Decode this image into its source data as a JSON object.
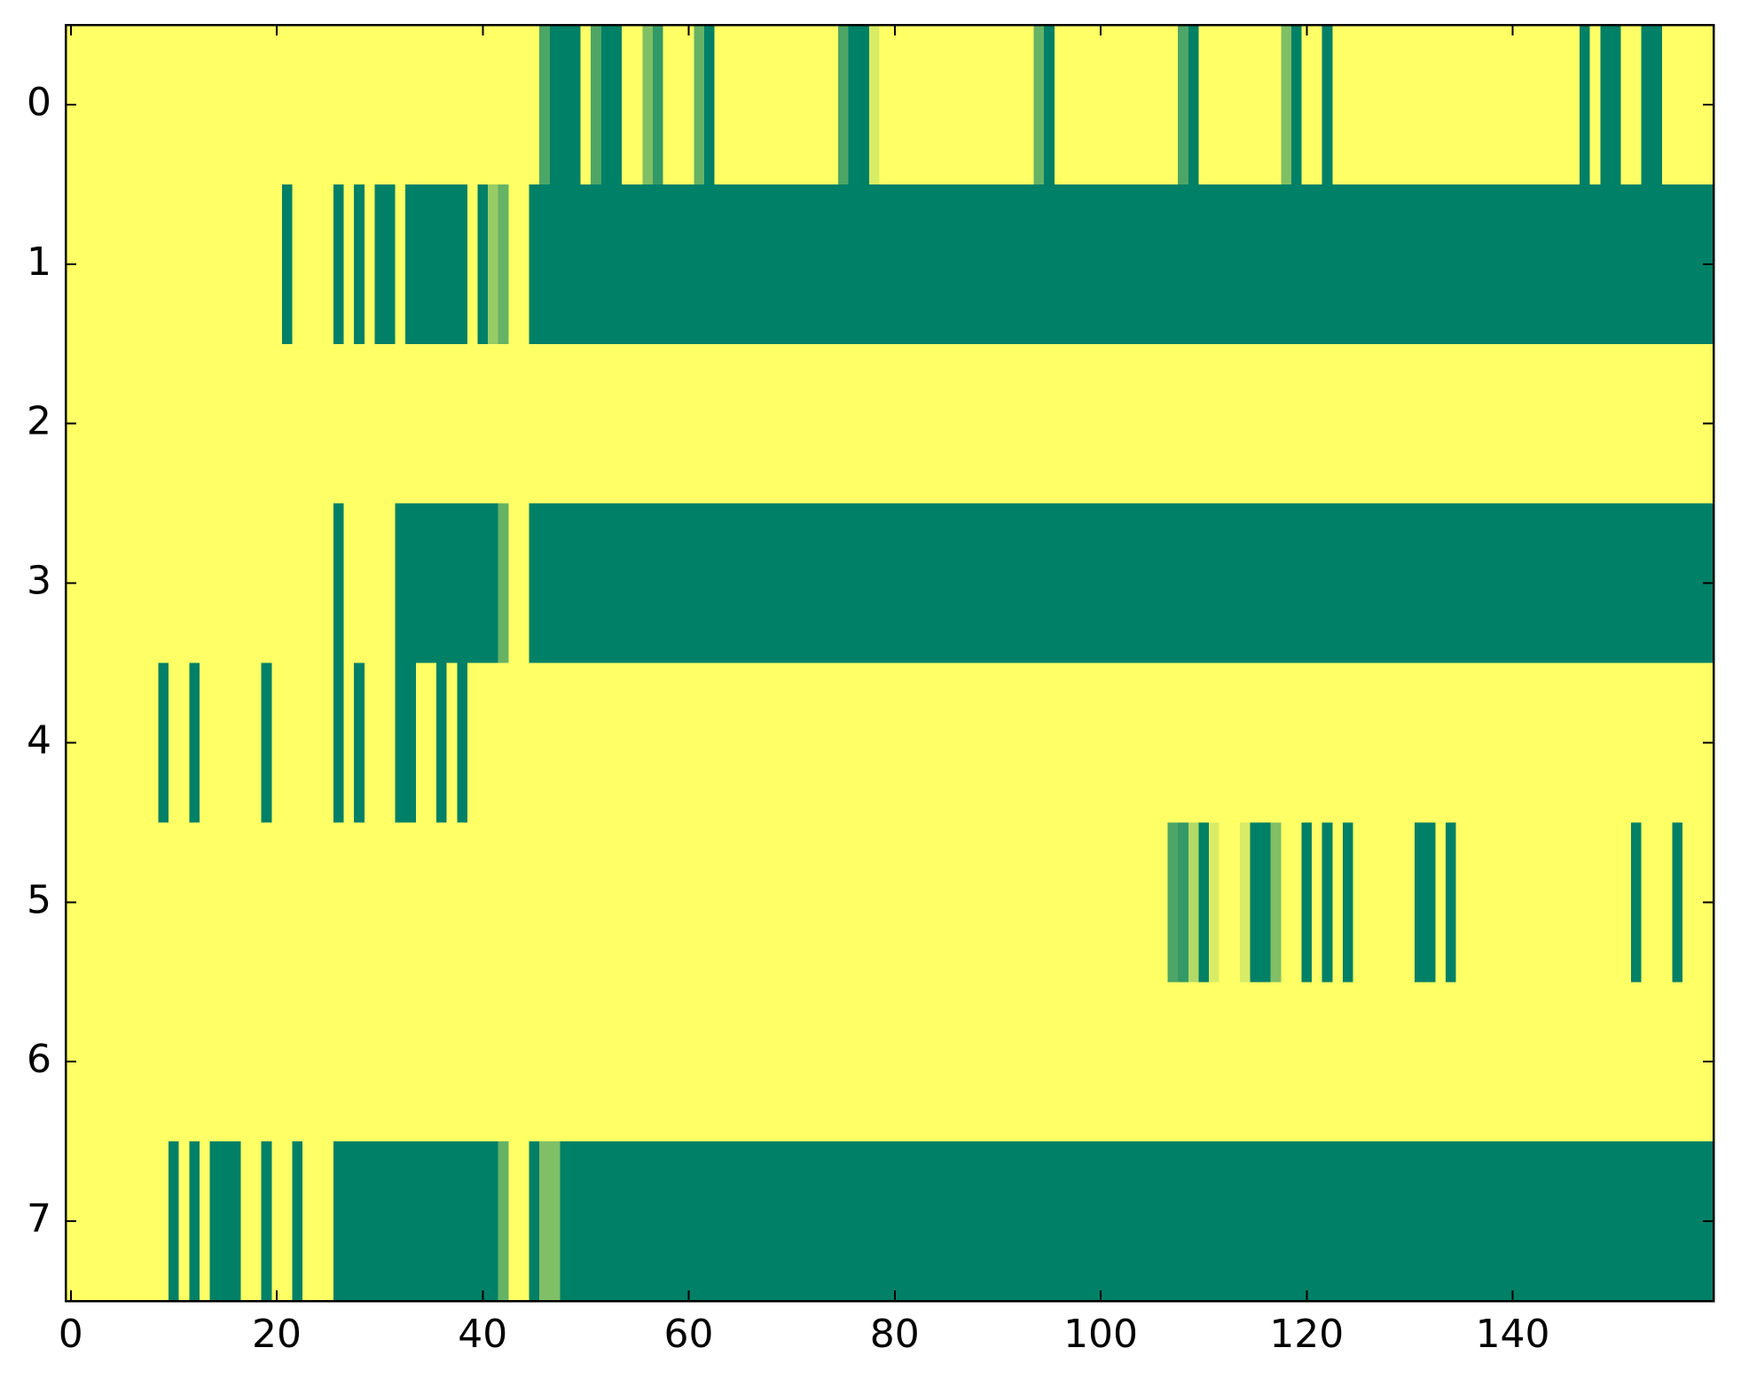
{
  "chart_data": {
    "type": "heatmap",
    "colormap": "summer_r",
    "vlim": [
      0,
      1
    ],
    "xlim": [
      -0.5,
      159.5
    ],
    "ylim": [
      7.5,
      -0.5
    ],
    "xticks": [
      0,
      20,
      40,
      60,
      80,
      100,
      120,
      140
    ],
    "yticks": [
      0,
      1,
      2,
      3,
      4,
      5,
      6,
      7
    ],
    "z": [
      [
        0,
        0,
        0,
        0,
        0,
        0,
        0,
        0,
        0,
        0,
        0,
        0,
        0,
        0,
        0,
        0,
        0,
        0,
        0,
        0,
        0,
        0,
        0,
        0,
        0,
        0,
        0,
        0,
        0,
        0,
        0,
        0,
        0,
        0,
        0,
        0,
        0,
        0,
        0,
        0,
        0,
        0,
        0,
        0,
        0,
        0,
        0.7,
        1,
        1,
        1,
        0,
        0.7,
        1,
        1,
        0,
        0,
        0.5,
        0.8,
        0,
        0,
        0,
        0.6,
        1,
        0,
        0,
        0,
        0,
        0,
        0,
        0,
        0,
        0,
        0,
        0,
        0,
        0.7,
        1,
        1,
        0.15,
        0,
        0,
        0,
        0,
        0,
        0,
        0,
        0,
        0,
        0,
        0,
        0,
        0,
        0,
        0,
        0.6,
        1,
        0,
        0,
        0,
        0,
        0,
        0,
        0,
        0,
        0,
        0,
        0,
        0,
        0.7,
        1,
        0,
        0,
        0,
        0,
        0,
        0,
        0,
        0,
        0.5,
        1,
        0,
        0,
        1,
        0,
        0,
        0,
        0,
        0,
        0,
        0,
        0,
        0,
        0,
        0,
        0,
        0,
        0,
        0,
        0,
        0,
        0,
        0,
        0,
        0,
        0,
        0,
        0,
        1,
        0,
        1,
        1,
        0,
        0,
        1,
        1,
        0,
        0,
        0,
        0,
        0
      ],
      [
        0,
        0,
        0,
        0,
        0,
        0,
        0,
        0,
        0,
        0,
        0,
        0,
        0,
        0,
        0,
        0,
        0,
        0,
        0,
        0,
        0,
        1,
        0,
        0,
        0,
        0,
        1,
        0,
        1,
        0,
        1,
        1,
        0,
        1,
        1,
        1,
        1,
        1,
        1,
        0,
        1,
        0.4,
        0.6,
        0,
        0,
        1,
        1,
        1,
        1,
        1,
        1,
        1,
        1,
        1,
        1,
        1,
        1,
        1,
        1,
        1,
        1,
        1,
        1,
        1,
        1,
        1,
        1,
        1,
        1,
        1,
        1,
        1,
        1,
        1,
        1,
        1,
        1,
        1,
        1,
        1,
        1,
        1,
        1,
        1,
        1,
        1,
        1,
        1,
        1,
        1,
        1,
        1,
        1,
        1,
        1,
        1,
        1,
        1,
        1,
        1,
        1,
        1,
        1,
        1,
        1,
        1,
        1,
        1,
        1,
        1,
        1,
        1,
        1,
        1,
        1,
        1,
        1,
        1,
        1,
        1,
        1,
        1,
        1,
        1,
        1,
        1,
        1,
        1,
        1,
        1,
        1,
        1,
        1,
        1,
        1,
        1,
        1,
        1,
        1,
        1,
        1,
        1,
        1,
        1,
        1,
        1,
        1,
        1,
        1,
        1,
        1,
        1,
        1,
        1,
        1,
        1,
        1,
        1,
        1,
        1
      ],
      [
        0,
        0,
        0,
        0,
        0,
        0,
        0,
        0,
        0,
        0,
        0,
        0,
        0,
        0,
        0,
        0,
        0,
        0,
        0,
        0,
        0,
        0,
        0,
        0,
        0,
        0,
        0,
        0,
        0,
        0,
        0,
        0,
        0,
        0,
        0,
        0,
        0,
        0,
        0,
        0,
        0,
        0,
        0,
        0,
        0,
        0,
        0,
        0,
        0,
        0,
        0,
        0,
        0,
        0,
        0,
        0,
        0,
        0,
        0,
        0,
        0,
        0,
        0,
        0,
        0,
        0,
        0,
        0,
        0,
        0,
        0,
        0,
        0,
        0,
        0,
        0,
        0,
        0,
        0,
        0,
        0,
        0,
        0,
        0,
        0,
        0,
        0,
        0,
        0,
        0,
        0,
        0,
        0,
        0,
        0,
        0,
        0,
        0,
        0,
        0,
        0,
        0,
        0,
        0,
        0,
        0,
        0,
        0,
        0,
        0,
        0,
        0,
        0,
        0,
        0,
        0,
        0,
        0,
        0,
        0,
        0,
        0,
        0,
        0,
        0,
        0,
        0,
        0,
        0,
        0,
        0,
        0,
        0,
        0,
        0,
        0,
        0,
        0,
        0,
        0,
        0,
        0,
        0,
        0,
        0,
        0,
        0,
        0,
        0,
        0,
        0,
        0,
        0,
        0,
        0,
        0,
        0,
        0,
        0,
        0
      ],
      [
        0,
        0,
        0,
        0,
        0,
        0,
        0,
        0,
        0,
        0,
        0,
        0,
        0,
        0,
        0,
        0,
        0,
        0,
        0,
        0,
        0,
        0,
        0,
        0,
        0,
        0,
        1,
        0,
        0,
        0,
        0,
        0,
        1,
        1,
        1,
        1,
        1,
        1,
        1,
        1,
        1,
        1,
        0.6,
        0,
        0,
        1,
        1,
        1,
        1,
        1,
        1,
        1,
        1,
        1,
        1,
        1,
        1,
        1,
        1,
        1,
        1,
        1,
        1,
        1,
        1,
        1,
        1,
        1,
        1,
        1,
        1,
        1,
        1,
        1,
        1,
        1,
        1,
        1,
        1,
        1,
        1,
        1,
        1,
        1,
        1,
        1,
        1,
        1,
        1,
        1,
        1,
        1,
        1,
        1,
        1,
        1,
        1,
        1,
        1,
        1,
        1,
        1,
        1,
        1,
        1,
        1,
        1,
        1,
        1,
        1,
        1,
        1,
        1,
        1,
        1,
        1,
        1,
        1,
        1,
        1,
        1,
        1,
        1,
        1,
        1,
        1,
        1,
        1,
        1,
        1,
        1,
        1,
        1,
        1,
        1,
        1,
        1,
        1,
        1,
        1,
        1,
        1,
        1,
        1,
        1,
        1,
        1,
        1,
        1,
        1,
        1,
        1,
        1,
        1,
        1,
        1,
        1,
        1,
        1,
        1
      ],
      [
        0,
        0,
        0,
        0,
        0,
        0,
        0,
        0,
        0,
        1,
        0,
        0,
        1,
        0,
        0,
        0,
        0,
        0,
        0,
        1,
        0,
        0,
        0,
        0,
        0,
        0,
        1,
        0,
        1,
        0,
        0,
        0,
        1,
        1,
        0,
        0,
        1,
        0,
        1,
        0,
        0,
        0,
        0,
        0,
        0,
        0,
        0,
        0,
        0,
        0,
        0,
        0,
        0,
        0,
        0,
        0,
        0,
        0,
        0,
        0,
        0,
        0,
        0,
        0,
        0,
        0,
        0,
        0,
        0,
        0,
        0,
        0,
        0,
        0,
        0,
        0,
        0,
        0,
        0,
        0,
        0,
        0,
        0,
        0,
        0,
        0,
        0,
        0,
        0,
        0,
        0,
        0,
        0,
        0,
        0,
        0,
        0,
        0,
        0,
        0,
        0,
        0,
        0,
        0,
        0,
        0,
        0,
        0,
        0,
        0,
        0,
        0,
        0,
        0,
        0,
        0,
        0,
        0,
        0,
        0,
        0,
        0,
        0,
        0,
        0,
        0,
        0,
        0,
        0,
        0,
        0,
        0,
        0,
        0,
        0,
        0,
        0,
        0,
        0,
        0,
        0,
        0,
        0,
        0,
        0,
        0,
        0,
        0,
        0,
        0,
        0,
        0,
        0,
        0,
        0,
        0,
        0,
        0,
        0,
        0
      ],
      [
        0,
        0,
        0,
        0,
        0,
        0,
        0,
        0,
        0,
        0,
        0,
        0,
        0,
        0,
        0,
        0,
        0,
        0,
        0,
        0,
        0,
        0,
        0,
        0,
        0,
        0,
        0,
        0,
        0,
        0,
        0,
        0,
        0,
        0,
        0,
        0,
        0,
        0,
        0,
        0,
        0,
        0,
        0,
        0,
        0,
        0,
        0,
        0,
        0,
        0,
        0,
        0,
        0,
        0,
        0,
        0,
        0,
        0,
        0,
        0,
        0,
        0,
        0,
        0,
        0,
        0,
        0,
        0,
        0,
        0,
        0,
        0,
        0,
        0,
        0,
        0,
        0,
        0,
        0,
        0,
        0,
        0,
        0,
        0,
        0,
        0,
        0,
        0,
        0,
        0,
        0,
        0,
        0,
        0,
        0,
        0,
        0,
        0,
        0,
        0,
        0,
        0,
        0,
        0,
        0,
        0,
        0,
        0.7,
        0.8,
        0.3,
        1,
        0.15,
        0,
        0,
        0.15,
        1,
        1,
        0.5,
        0,
        0,
        1,
        0,
        1,
        0,
        1,
        0,
        0,
        0,
        0,
        0,
        0,
        1,
        1,
        0,
        1,
        0,
        0,
        0,
        0,
        0,
        0,
        0,
        0,
        0,
        0,
        0,
        0,
        0,
        0,
        0,
        0,
        0,
        1,
        0,
        0,
        0,
        1,
        0,
        0,
        0
      ],
      [
        0,
        0,
        0,
        0,
        0,
        0,
        0,
        0,
        0,
        0,
        0,
        0,
        0,
        0,
        0,
        0,
        0,
        0,
        0,
        0,
        0,
        0,
        0,
        0,
        0,
        0,
        0,
        0,
        0,
        0,
        0,
        0,
        0,
        0,
        0,
        0,
        0,
        0,
        0,
        0,
        0,
        0,
        0,
        0,
        0,
        0,
        0,
        0,
        0,
        0,
        0,
        0,
        0,
        0,
        0,
        0,
        0,
        0,
        0,
        0,
        0,
        0,
        0,
        0,
        0,
        0,
        0,
        0,
        0,
        0,
        0,
        0,
        0,
        0,
        0,
        0,
        0,
        0,
        0,
        0,
        0,
        0,
        0,
        0,
        0,
        0,
        0,
        0,
        0,
        0,
        0,
        0,
        0,
        0,
        0,
        0,
        0,
        0,
        0,
        0,
        0,
        0,
        0,
        0,
        0,
        0,
        0,
        0,
        0,
        0,
        0,
        0,
        0,
        0,
        0,
        0,
        0,
        0,
        0,
        0,
        0,
        0,
        0,
        0,
        0,
        0,
        0,
        0,
        0,
        0,
        0,
        0,
        0,
        0,
        0,
        0,
        0,
        0,
        0,
        0,
        0,
        0,
        0,
        0,
        0,
        0,
        0,
        0,
        0,
        0,
        0,
        0,
        0,
        0,
        0,
        0,
        0,
        0,
        0,
        0
      ],
      [
        0,
        0,
        0,
        0,
        0,
        0,
        0,
        0,
        0,
        0,
        1,
        0,
        1,
        0,
        1,
        1,
        1,
        0,
        0,
        1,
        0,
        0,
        1,
        0,
        0,
        0,
        1,
        1,
        1,
        1,
        1,
        1,
        1,
        1,
        1,
        1,
        1,
        1,
        1,
        1,
        1,
        1,
        0.6,
        0,
        0,
        1,
        0.5,
        0.5,
        1,
        1,
        1,
        1,
        1,
        1,
        1,
        1,
        1,
        1,
        1,
        1,
        1,
        1,
        1,
        1,
        1,
        1,
        1,
        1,
        1,
        1,
        1,
        1,
        1,
        1,
        1,
        1,
        1,
        1,
        1,
        1,
        1,
        1,
        1,
        1,
        1,
        1,
        1,
        1,
        1,
        1,
        1,
        1,
        1,
        1,
        1,
        1,
        1,
        1,
        1,
        1,
        1,
        1,
        1,
        1,
        1,
        1,
        1,
        1,
        1,
        1,
        1,
        1,
        1,
        1,
        1,
        1,
        1,
        1,
        1,
        1,
        1,
        1,
        1,
        1,
        1,
        1,
        1,
        1,
        1,
        1,
        1,
        1,
        1,
        1,
        1,
        1,
        1,
        1,
        1,
        1,
        1,
        1,
        1,
        1,
        1,
        1,
        1,
        1,
        1,
        1,
        1,
        1,
        1,
        1,
        1,
        1,
        1,
        1,
        1,
        1
      ]
    ]
  }
}
